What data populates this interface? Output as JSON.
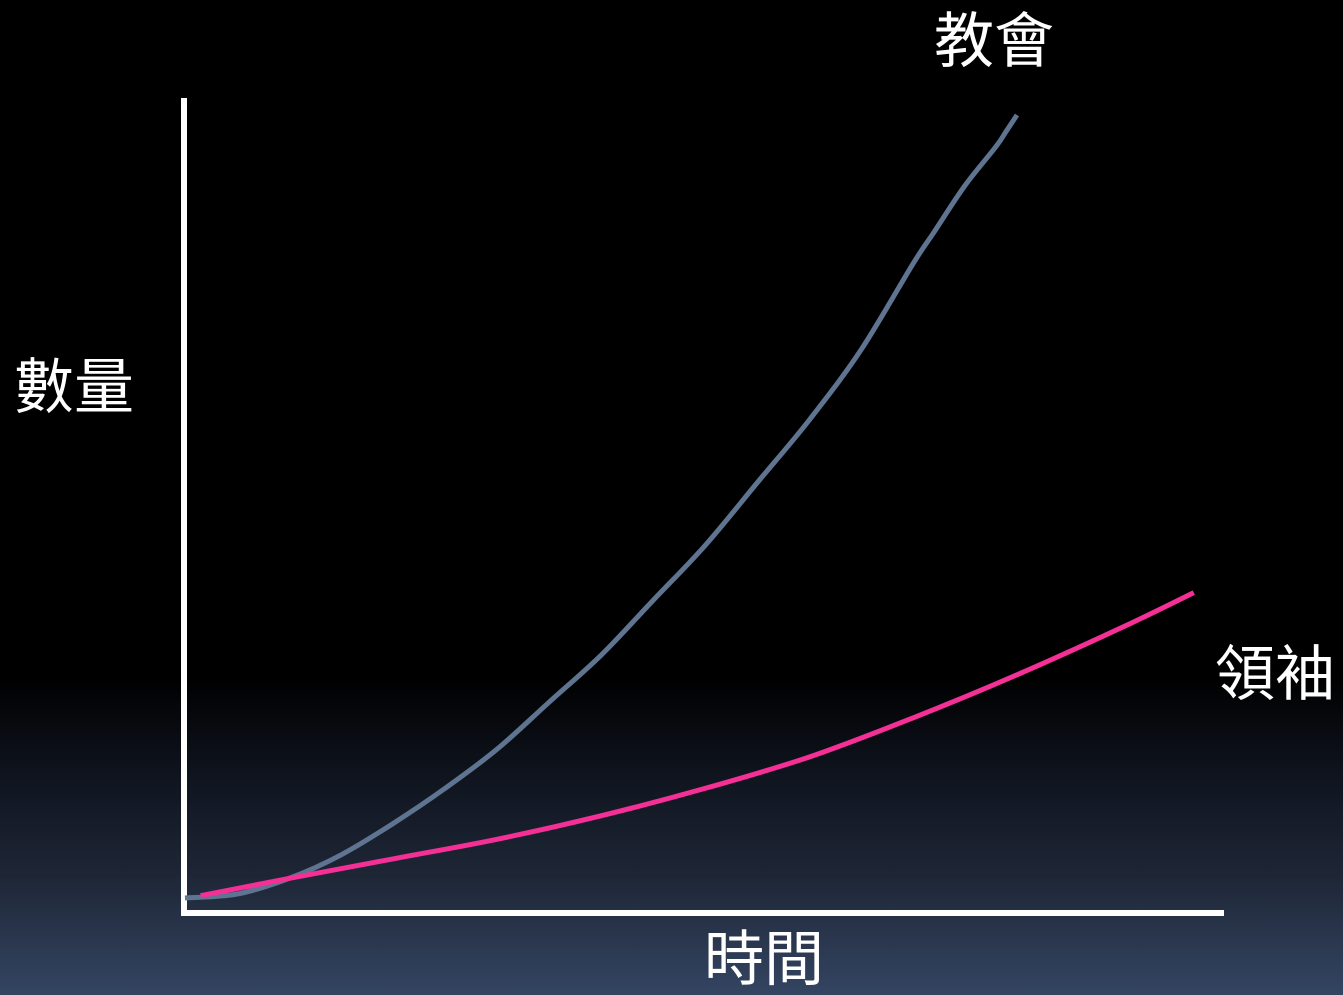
{
  "chart_data": {
    "type": "line",
    "xlabel": "時間",
    "ylabel": "數量",
    "xlim": [
      0,
      100
    ],
    "ylim": [
      0,
      100
    ],
    "grid": false,
    "axis_color": "#ffffff",
    "series": [
      {
        "name": "教會",
        "color": "#5f7490",
        "x": [
          0,
          5,
          10,
          15,
          20,
          25,
          30,
          35,
          40,
          45,
          50,
          55,
          60,
          65,
          70,
          72,
          75,
          78,
          79,
          80
        ],
        "y": [
          0,
          0.5,
          2.5,
          5.5,
          9.5,
          14,
          19,
          25,
          31,
          38,
          45,
          53,
          61,
          70,
          81,
          85,
          91,
          96,
          98,
          100
        ]
      },
      {
        "name": "領袖",
        "color": "#f42f95",
        "x": [
          1.5,
          10,
          20,
          30,
          40,
          50,
          60,
          70,
          80,
          90,
          97
        ],
        "y": [
          0.3,
          2.5,
          5,
          7.5,
          10.5,
          14,
          18,
          23,
          28.5,
          34.5,
          39
        ]
      }
    ]
  }
}
